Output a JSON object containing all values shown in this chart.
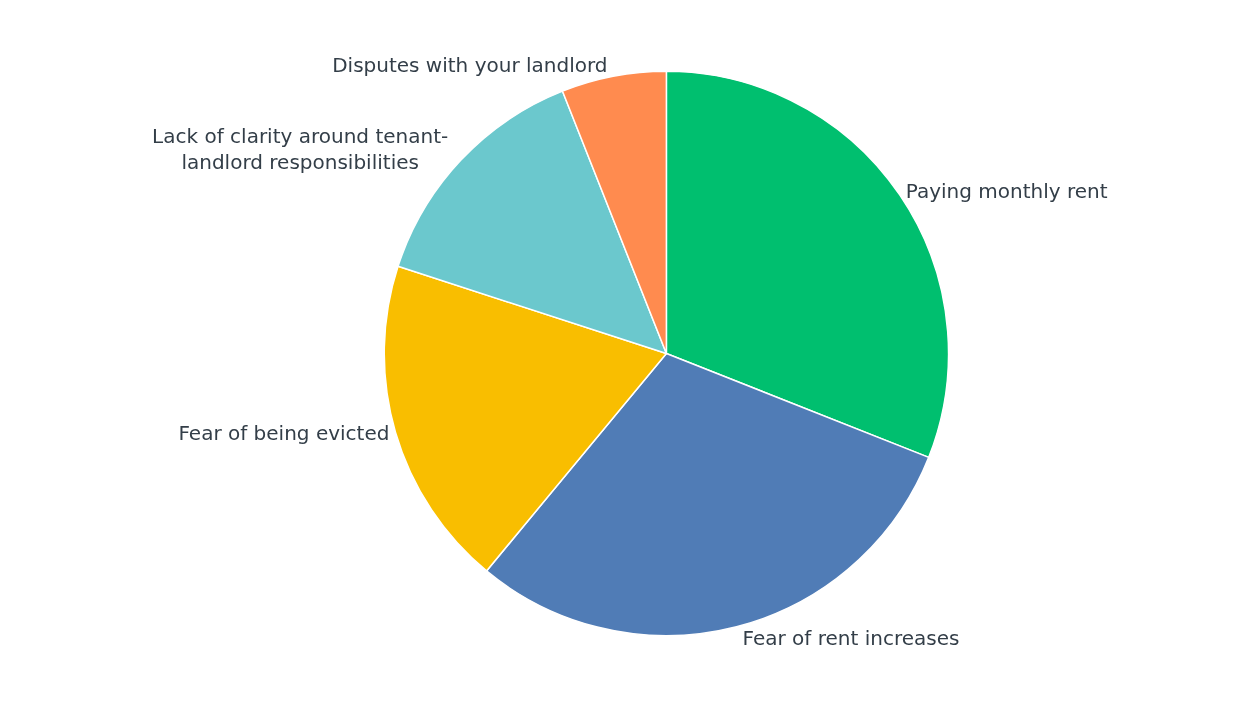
{
  "chart_data": {
    "type": "pie",
    "categories": [
      "Paying monthly rent",
      "Fear of rent increases",
      "Fear of being evicted",
      "Lack of clarity around tenant-landlord responsibilities",
      "Disputes with your landlord"
    ],
    "values": [
      31,
      30,
      19,
      14,
      6
    ],
    "colors": [
      "#00bf6f",
      "#507cb6",
      "#f9be00",
      "#6bc8cd",
      "#ff8b4f"
    ],
    "legend": false
  }
}
